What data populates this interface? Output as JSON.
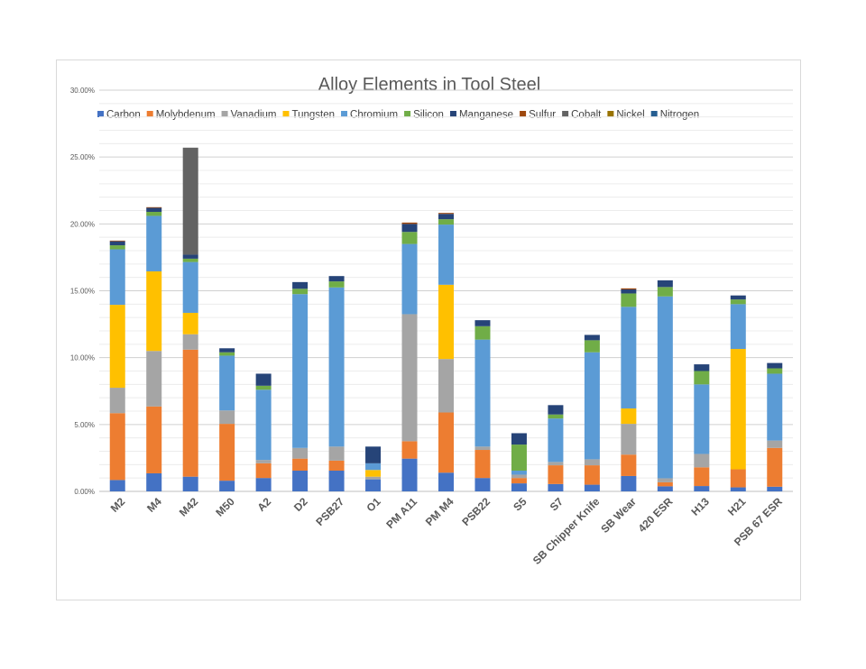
{
  "chart_data": {
    "type": "bar",
    "stacked": true,
    "title": "Alloy Elements in Tool Steel",
    "xlabel": "",
    "ylabel": "",
    "ylim": [
      0,
      30
    ],
    "y_ticks": [
      "0.00%",
      "5.00%",
      "10.00%",
      "15.00%",
      "20.00%",
      "25.00%",
      "30.00%"
    ],
    "grid": true,
    "legend_position": "top",
    "categories": [
      "M2",
      "M4",
      "M42",
      "M50",
      "A2",
      "D2",
      "PSB27",
      "O1",
      "PM A11",
      "PM M4",
      "PSB22",
      "S5",
      "S7",
      "SB Chipper Knife",
      "SB Wear",
      "420 ESR",
      "H13",
      "H21",
      "PSB 67 ESR"
    ],
    "series": [
      {
        "name": "Carbon",
        "color": "#4472c4",
        "values": [
          0.85,
          1.35,
          1.1,
          0.8,
          1.0,
          1.55,
          1.55,
          0.9,
          2.45,
          1.4,
          1.0,
          0.6,
          0.55,
          0.5,
          1.15,
          0.38,
          0.4,
          0.3,
          0.35
        ]
      },
      {
        "name": "Molybdenum",
        "color": "#ed7d31",
        "values": [
          5.0,
          5.0,
          9.5,
          4.25,
          1.1,
          0.9,
          0.75,
          0.0,
          1.3,
          4.5,
          2.1,
          0.4,
          1.4,
          1.45,
          1.6,
          0.3,
          1.4,
          1.35,
          2.9
        ]
      },
      {
        "name": "Vanadium",
        "color": "#a5a5a5",
        "values": [
          1.9,
          4.15,
          1.15,
          1.0,
          0.25,
          0.8,
          1.05,
          0.2,
          9.5,
          4.0,
          0.25,
          0.25,
          0.25,
          0.45,
          2.3,
          0.3,
          1.0,
          0.0,
          0.55
        ]
      },
      {
        "name": "Tungsten",
        "color": "#ffc000",
        "values": [
          6.2,
          5.95,
          1.6,
          0.0,
          0.0,
          0.0,
          0.0,
          0.5,
          0.0,
          5.55,
          0.0,
          0.0,
          0.0,
          0.0,
          1.15,
          0.0,
          0.0,
          9.0,
          0.0
        ]
      },
      {
        "name": "Chromium",
        "color": "#5b9bd5",
        "values": [
          4.15,
          4.15,
          3.8,
          4.1,
          5.25,
          11.5,
          11.9,
          0.5,
          5.25,
          4.5,
          8.0,
          0.3,
          3.25,
          8.0,
          7.6,
          13.6,
          5.2,
          3.35,
          5.0
        ]
      },
      {
        "name": "Silicon",
        "color": "#70ad47",
        "values": [
          0.3,
          0.3,
          0.25,
          0.25,
          0.3,
          0.4,
          0.45,
          0.0,
          0.9,
          0.4,
          1.0,
          1.95,
          0.3,
          0.9,
          1.0,
          0.7,
          1.0,
          0.35,
          0.4
        ]
      },
      {
        "name": "Manganese",
        "color": "#264478",
        "values": [
          0.3,
          0.3,
          0.3,
          0.3,
          0.9,
          0.5,
          0.4,
          1.25,
          0.6,
          0.4,
          0.45,
          0.85,
          0.7,
          0.4,
          0.3,
          0.5,
          0.5,
          0.3,
          0.4
        ]
      },
      {
        "name": "Sulfur",
        "color": "#9e480e",
        "values": [
          0.05,
          0.05,
          0.0,
          0.0,
          0.0,
          0.0,
          0.0,
          0.0,
          0.1,
          0.07,
          0.0,
          0.0,
          0.0,
          0.0,
          0.08,
          0.0,
          0.0,
          0.0,
          0.0
        ]
      },
      {
        "name": "Cobalt",
        "color": "#636363",
        "values": [
          0.0,
          0.0,
          8.0,
          0.0,
          0.0,
          0.0,
          0.0,
          0.0,
          0.0,
          0.0,
          0.0,
          0.0,
          0.0,
          0.0,
          0.0,
          0.0,
          0.0,
          0.0,
          0.0
        ]
      },
      {
        "name": "Nickel",
        "color": "#997300",
        "values": [
          0.0,
          0.0,
          0.0,
          0.0,
          0.0,
          0.0,
          0.0,
          0.0,
          0.0,
          0.0,
          0.0,
          0.0,
          0.0,
          0.0,
          0.0,
          0.0,
          0.0,
          0.0,
          0.0
        ]
      },
      {
        "name": "Nitrogen",
        "color": "#255e91",
        "values": [
          0.0,
          0.0,
          0.0,
          0.0,
          0.0,
          0.0,
          0.0,
          0.0,
          0.0,
          0.0,
          0.0,
          0.0,
          0.0,
          0.0,
          0.0,
          0.0,
          0.0,
          0.0,
          0.0
        ]
      }
    ]
  }
}
